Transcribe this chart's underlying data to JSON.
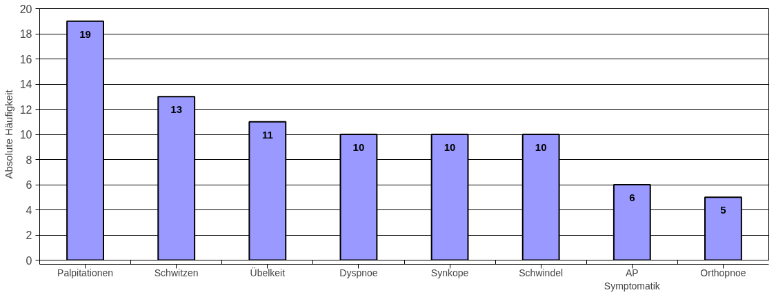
{
  "chart_data": {
    "type": "bar",
    "ylabel": "Absolute Häufigkeit",
    "categories": [
      "Palpitationen",
      "Schwitzen",
      "Übelkeit",
      "Dyspnoe",
      "Synkope",
      "Schwindel",
      "AP Symptomatik",
      "Orthopnoe"
    ],
    "values": [
      19,
      13,
      11,
      10,
      10,
      10,
      6,
      5
    ],
    "color": "#9999ff",
    "ylim": [
      0,
      20
    ],
    "yticks": [
      0,
      2,
      4,
      6,
      8,
      10,
      12,
      14,
      16,
      18,
      20
    ],
    "grid": "y",
    "data_labels": true
  }
}
